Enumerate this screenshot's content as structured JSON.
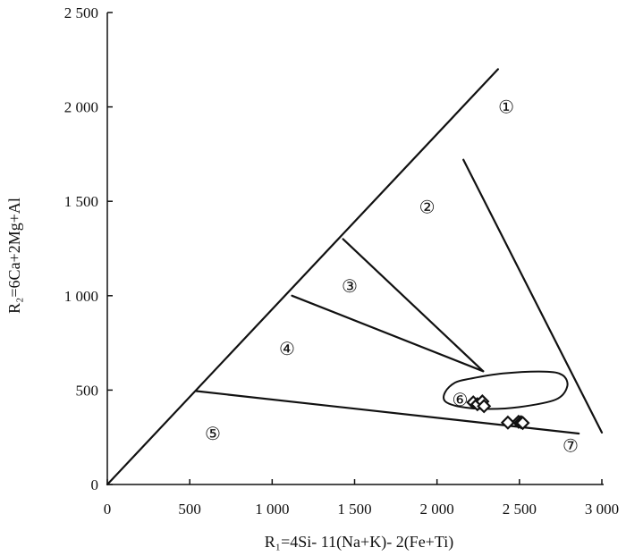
{
  "chart_data": {
    "type": "scatter",
    "xlabel": "R₁=4Si- 11(Na+K)- 2(Fe+Ti)",
    "ylabel": "R₂=6Ca+2Mg+Al",
    "xlim": [
      0,
      3000
    ],
    "ylim": [
      0,
      2500
    ],
    "x_ticks": [
      {
        "value": 0,
        "label": "0"
      },
      {
        "value": 500,
        "label": "500"
      },
      {
        "value": 1000,
        "label": "1 000"
      },
      {
        "value": 1500,
        "label": "1 500"
      },
      {
        "value": 2000,
        "label": "2 000"
      },
      {
        "value": 2500,
        "label": "2 500"
      },
      {
        "value": 3000,
        "label": "3 000"
      }
    ],
    "y_ticks": [
      {
        "value": 0,
        "label": "0"
      },
      {
        "value": 500,
        "label": "500"
      },
      {
        "value": 1000,
        "label": "1 000"
      },
      {
        "value": 1500,
        "label": "1 500"
      },
      {
        "value": 2000,
        "label": "2 000"
      },
      {
        "value": 2500,
        "label": "2 500"
      }
    ],
    "grid": false,
    "boundaries": [
      {
        "name": "diagonal",
        "points": [
          [
            0,
            0
          ],
          [
            2370,
            2200
          ]
        ]
      },
      {
        "name": "base",
        "points": [
          [
            540,
            495
          ],
          [
            2860,
            270
          ]
        ]
      },
      {
        "name": "line-4-5",
        "points": [
          [
            1120,
            1000
          ],
          [
            2280,
            600
          ]
        ]
      },
      {
        "name": "line-3-4",
        "points": [
          [
            1430,
            1300
          ],
          [
            2280,
            600
          ]
        ]
      },
      {
        "name": "line-1-2",
        "points": [
          [
            2160,
            1720
          ],
          [
            3000,
            275
          ]
        ]
      }
    ],
    "enclosure": [
      [
        2200,
        560
      ],
      [
        2400,
        588
      ],
      [
        2650,
        598
      ],
      [
        2760,
        580
      ],
      [
        2790,
        520
      ],
      [
        2720,
        450
      ],
      [
        2500,
        410
      ],
      [
        2300,
        400
      ],
      [
        2140,
        412
      ],
      [
        2050,
        440
      ],
      [
        2050,
        490
      ],
      [
        2110,
        540
      ],
      [
        2200,
        560
      ]
    ],
    "regions": [
      {
        "label": "①",
        "x": 2420,
        "y": 2000
      },
      {
        "label": "②",
        "x": 1940,
        "y": 1470
      },
      {
        "label": "③",
        "x": 1470,
        "y": 1050
      },
      {
        "label": "④",
        "x": 1090,
        "y": 720
      },
      {
        "label": "⑤",
        "x": 640,
        "y": 270
      },
      {
        "label": "⑥",
        "x": 2140,
        "y": 450
      },
      {
        "label": "⑦",
        "x": 2810,
        "y": 205
      }
    ],
    "series": [
      {
        "marker": "diamond",
        "points": [
          [
            2220,
            435
          ],
          [
            2245,
            425
          ],
          [
            2275,
            440
          ],
          [
            2285,
            415
          ],
          [
            2430,
            328
          ],
          [
            2495,
            332
          ],
          [
            2510,
            330
          ],
          [
            2520,
            326
          ]
        ]
      }
    ]
  }
}
